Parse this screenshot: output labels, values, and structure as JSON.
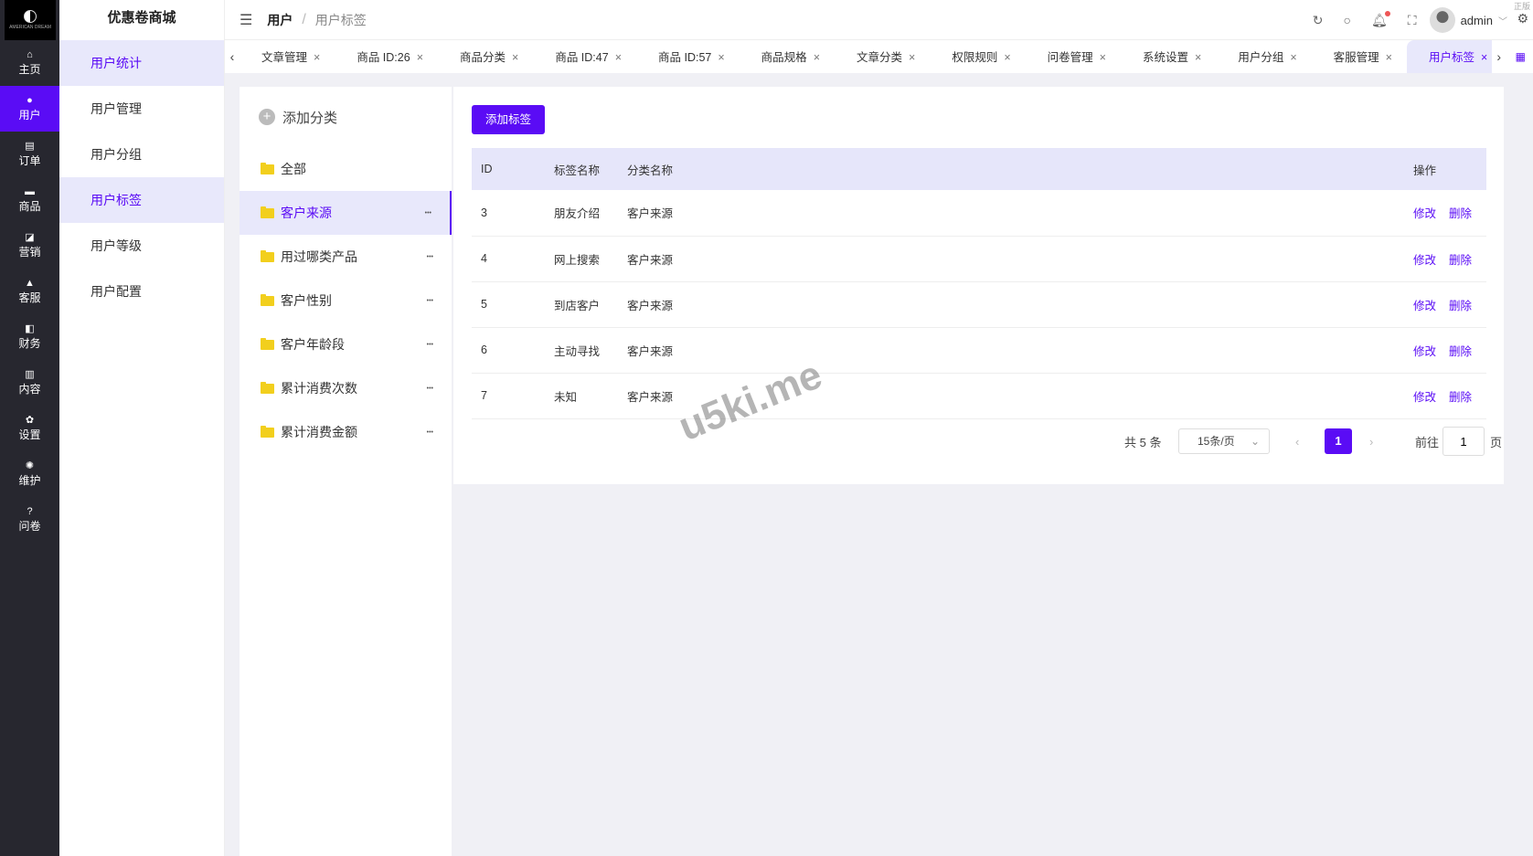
{
  "brand": {
    "logo_text": "AMERICAN DREAM",
    "store_name": "优惠卷商城"
  },
  "nav": [
    {
      "label": "主页",
      "icon": "home-icon"
    },
    {
      "label": "用户",
      "icon": "user-icon"
    },
    {
      "label": "订单",
      "icon": "order-icon"
    },
    {
      "label": "商品",
      "icon": "goods-icon"
    },
    {
      "label": "营销",
      "icon": "marketing-icon"
    },
    {
      "label": "客服",
      "icon": "service-icon"
    },
    {
      "label": "财务",
      "icon": "finance-icon"
    },
    {
      "label": "内容",
      "icon": "content-icon"
    },
    {
      "label": "设置",
      "icon": "settings-icon"
    },
    {
      "label": "维护",
      "icon": "maintain-icon"
    },
    {
      "label": "问卷",
      "icon": "question-icon"
    }
  ],
  "submenu": [
    "用户统计",
    "用户管理",
    "用户分组",
    "用户标签",
    "用户等级",
    "用户配置"
  ],
  "breadcrumb": {
    "parent": "用户",
    "current": "用户标签",
    "sep": "/"
  },
  "header": {
    "user": "admin",
    "corner": "正版"
  },
  "tabs": [
    "文章管理",
    "商品 ID:26",
    "商品分类",
    "商品 ID:47",
    "商品 ID:57",
    "商品规格",
    "文章分类",
    "权限规则",
    "问卷管理",
    "系统设置",
    "用户分组",
    "客服管理",
    "用户标签"
  ],
  "categories": {
    "add_label": "添加分类",
    "items": [
      "全部",
      "客户来源",
      "用过哪类产品",
      "客户性别",
      "客户年龄段",
      "累计消费次数",
      "累计消费金额"
    ]
  },
  "main": {
    "add_button": "添加标签",
    "columns": [
      "ID",
      "标签名称",
      "分类名称",
      "操作"
    ],
    "rows": [
      {
        "id": "3",
        "name": "朋友介绍",
        "cat": "客户来源"
      },
      {
        "id": "4",
        "name": "网上搜索",
        "cat": "客户来源"
      },
      {
        "id": "5",
        "name": "到店客户",
        "cat": "客户来源"
      },
      {
        "id": "6",
        "name": "主动寻找",
        "cat": "客户来源"
      },
      {
        "id": "7",
        "name": "未知",
        "cat": "客户来源"
      }
    ],
    "edit": "修改",
    "delete": "删除"
  },
  "pager": {
    "total": "共 5 条",
    "page_size": "15条/页",
    "current": "1",
    "goto": "前往",
    "goto_value": "1",
    "page_unit": "页"
  },
  "watermark": "u5ki.me",
  "colors": {
    "accent": "#5a0cf5",
    "nav_bg": "#27272f",
    "highlight": "#e8e8fb"
  }
}
